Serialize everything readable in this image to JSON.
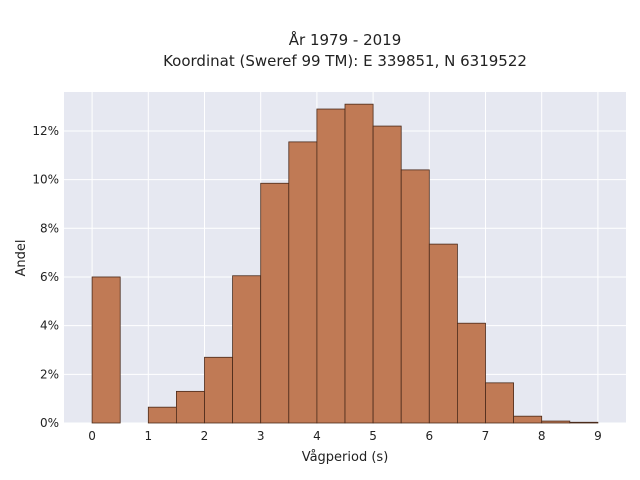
{
  "chart_data": {
    "type": "bar",
    "title_line1": "År 1979 - 2019",
    "title_line2": "Koordinat (Sweref 99 TM): E 339851, N 6319522",
    "xlabel": "Vågperiod (s)",
    "ylabel": "Andel",
    "bin_width": 0.5,
    "xlim": [
      -0.5,
      9.5
    ],
    "ylim": [
      0,
      13.6
    ],
    "x_ticks": [
      0,
      1,
      2,
      3,
      4,
      5,
      6,
      7,
      8,
      9
    ],
    "y_ticks": [
      0,
      2,
      4,
      6,
      8,
      10,
      12
    ],
    "y_tick_labels": [
      "0%",
      "2%",
      "4%",
      "6%",
      "8%",
      "10%",
      "12%"
    ],
    "x_tick_labels": [
      "0",
      "1",
      "2",
      "3",
      "4",
      "5",
      "6",
      "7",
      "8",
      "9"
    ],
    "bins": [
      {
        "start": 0.0,
        "value": 6.0
      },
      {
        "start": 1.0,
        "value": 0.65
      },
      {
        "start": 1.5,
        "value": 1.3
      },
      {
        "start": 2.0,
        "value": 2.7
      },
      {
        "start": 2.5,
        "value": 6.05
      },
      {
        "start": 3.0,
        "value": 9.85
      },
      {
        "start": 3.5,
        "value": 11.55
      },
      {
        "start": 4.0,
        "value": 12.9
      },
      {
        "start": 4.5,
        "value": 13.1
      },
      {
        "start": 5.0,
        "value": 12.2
      },
      {
        "start": 5.5,
        "value": 10.4
      },
      {
        "start": 6.0,
        "value": 7.35
      },
      {
        "start": 6.5,
        "value": 4.1
      },
      {
        "start": 7.0,
        "value": 1.65
      },
      {
        "start": 7.5,
        "value": 0.28
      },
      {
        "start": 8.0,
        "value": 0.08
      },
      {
        "start": 8.5,
        "value": 0.03
      }
    ],
    "grid": true,
    "legend": "none",
    "colors": {
      "bar_fill": "#c07a55",
      "bar_stroke": "#4a2a1a",
      "plot_bg": "#e6e8f1",
      "grid": "#ffffff"
    }
  }
}
